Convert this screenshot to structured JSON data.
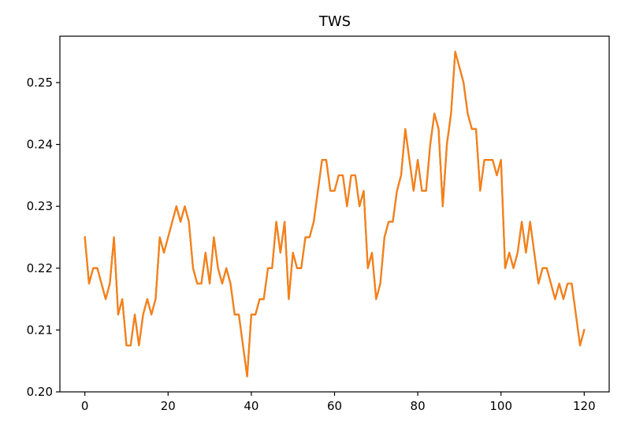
{
  "chart_data": {
    "type": "line",
    "title": "TWS",
    "xlabel": "",
    "ylabel": "",
    "xlim": [
      -6,
      126
    ],
    "ylim": [
      0.2,
      0.2575
    ],
    "grid": false,
    "xticks": [
      0,
      20,
      40,
      60,
      80,
      100,
      120
    ],
    "xtick_labels": [
      "0",
      "20",
      "40",
      "60",
      "80",
      "100",
      "120"
    ],
    "yticks": [
      0.2,
      0.21,
      0.22,
      0.23,
      0.24,
      0.25
    ],
    "ytick_labels": [
      "0.20",
      "0.21",
      "0.22",
      "0.23",
      "0.24",
      "0.25"
    ],
    "series": [
      {
        "color": "#1f77b4",
        "values": [
          0.225,
          0.2175,
          0.22,
          0.22,
          0.2175,
          0.215,
          0.2175,
          0.225,
          0.2125,
          0.215,
          0.2075,
          0.2075,
          0.2125,
          0.2075,
          0.2125,
          0.215,
          0.2125,
          0.215,
          0.225,
          0.2225,
          0.225,
          0.2275,
          0.23,
          0.2275,
          0.23,
          0.2275,
          0.22,
          0.2175,
          0.2175,
          0.2225,
          0.2175,
          0.225,
          0.22,
          0.2175,
          0.22,
          0.2175,
          0.2125,
          0.2125,
          0.2075,
          0.2025,
          0.2125,
          0.2125,
          0.215,
          0.215,
          0.22,
          0.22,
          0.2275,
          0.2225,
          0.2275,
          0.215,
          0.2225,
          0.22,
          0.22,
          0.225,
          0.225,
          0.2275,
          0.2325,
          0.2375,
          0.2375,
          0.2325,
          0.2325,
          0.235,
          0.235,
          0.23,
          0.235,
          0.235,
          0.23,
          0.2325,
          0.22,
          0.2225,
          0.215,
          0.2175,
          0.225,
          0.2275,
          0.2275,
          0.2325,
          0.235,
          0.2425,
          0.2375,
          0.2325,
          0.2375,
          0.2325,
          0.2325,
          0.24,
          0.245,
          0.2425,
          0.23,
          0.24,
          0.245,
          0.255,
          0.2525,
          0.25,
          0.245,
          0.2425,
          0.2425,
          0.2325,
          0.2375,
          0.2375,
          0.2375,
          0.235,
          0.2375,
          0.22,
          0.2225,
          0.22,
          0.2225,
          0.2275,
          0.2225,
          0.2275,
          0.2225,
          0.2175,
          0.22,
          0.22,
          0.2175,
          0.215,
          0.2175,
          0.215,
          0.2175,
          0.2175,
          0.2125,
          0.2075,
          0.21
        ]
      },
      {
        "color": "#ff7f0e",
        "values": [
          0.225,
          0.2175,
          0.22,
          0.22,
          0.2175,
          0.215,
          0.2175,
          0.225,
          0.2125,
          0.215,
          0.2075,
          0.2075,
          0.2125,
          0.2075,
          0.2125,
          0.215,
          0.2125,
          0.215,
          0.225,
          0.2225,
          0.225,
          0.2275,
          0.23,
          0.2275,
          0.23,
          0.2275,
          0.22,
          0.2175,
          0.2175,
          0.2225,
          0.2175,
          0.225,
          0.22,
          0.2175,
          0.22,
          0.2175,
          0.2125,
          0.2125,
          0.2075,
          0.2025,
          0.2125,
          0.2125,
          0.215,
          0.215,
          0.22,
          0.22,
          0.2275,
          0.2225,
          0.2275,
          0.215,
          0.2225,
          0.22,
          0.22,
          0.225,
          0.225,
          0.2275,
          0.2325,
          0.2375,
          0.2375,
          0.2325,
          0.2325,
          0.235,
          0.235,
          0.23,
          0.235,
          0.235,
          0.23,
          0.2325,
          0.22,
          0.2225,
          0.215,
          0.2175,
          0.225,
          0.2275,
          0.2275,
          0.2325,
          0.235,
          0.2425,
          0.2375,
          0.2325,
          0.2375,
          0.2325,
          0.2325,
          0.24,
          0.245,
          0.2425,
          0.23,
          0.24,
          0.245,
          0.255,
          0.2525,
          0.25,
          0.245,
          0.2425,
          0.2425,
          0.2325,
          0.2375,
          0.2375,
          0.2375,
          0.235,
          0.2375,
          0.22,
          0.2225,
          0.22,
          0.2225,
          0.2275,
          0.2225,
          0.2275,
          0.2225,
          0.2175,
          0.22,
          0.22,
          0.2175,
          0.215,
          0.2175,
          0.215,
          0.2175,
          0.2175,
          0.2125,
          0.2075,
          0.21
        ]
      }
    ]
  }
}
